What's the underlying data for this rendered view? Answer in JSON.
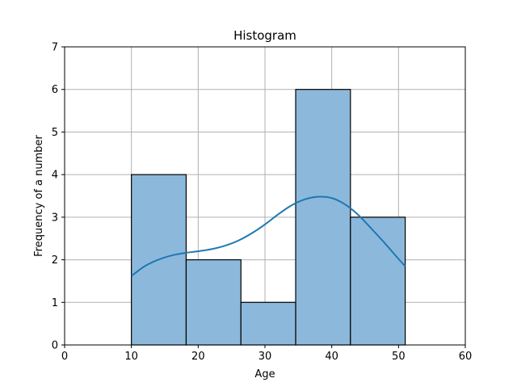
{
  "chart_data": {
    "type": "bar",
    "title": "Histogram",
    "xlabel": "Age",
    "ylabel": "Frequency of a number",
    "xlim": [
      0,
      60
    ],
    "ylim": [
      0,
      7
    ],
    "xticks": [
      0,
      10,
      20,
      30,
      40,
      50,
      60
    ],
    "yticks": [
      0,
      1,
      2,
      3,
      4,
      5,
      6,
      7
    ],
    "grid": true,
    "bins": [
      {
        "x0": 10.0,
        "x1": 18.2,
        "value": 4
      },
      {
        "x0": 18.2,
        "x1": 26.4,
        "value": 2
      },
      {
        "x0": 26.4,
        "x1": 34.6,
        "value": 1
      },
      {
        "x0": 34.6,
        "x1": 42.8,
        "value": 6
      },
      {
        "x0": 42.8,
        "x1": 51.0,
        "value": 3
      }
    ],
    "kde": {
      "x": [
        10,
        12,
        14,
        16,
        18,
        20,
        22,
        24,
        26,
        28,
        30,
        32,
        34,
        36,
        38,
        40,
        42,
        44,
        46,
        48,
        50,
        51
      ],
      "y": [
        1.62,
        1.85,
        2.0,
        2.1,
        2.16,
        2.2,
        2.25,
        2.33,
        2.45,
        2.62,
        2.83,
        3.07,
        3.28,
        3.42,
        3.48,
        3.45,
        3.3,
        3.05,
        2.72,
        2.38,
        2.02,
        1.85
      ]
    },
    "colors": {
      "bar_fill": "#8cb9db",
      "bar_edge": "#000000",
      "kde_line": "#1f77b4",
      "grid": "#b0b0b0"
    }
  }
}
